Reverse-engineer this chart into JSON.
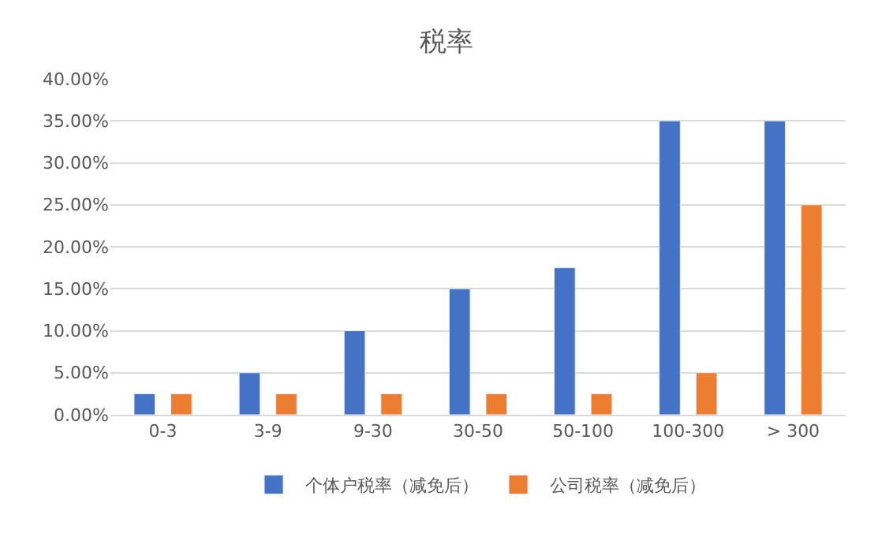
{
  "chart_data": {
    "type": "bar",
    "title": "税率",
    "categories": [
      "0-3",
      "3-9",
      "9-30",
      "30-50",
      "50-100",
      "100-300",
      "> 300"
    ],
    "series": [
      {
        "name": "个体户税率（减免后）",
        "color": "#4472c4",
        "values": [
          2.5,
          5,
          10,
          15,
          17.5,
          35,
          35
        ]
      },
      {
        "name": "公司税率（减免后）",
        "color": "#ed7d31",
        "values": [
          2.5,
          2.5,
          2.5,
          2.5,
          2.5,
          5,
          25
        ]
      }
    ],
    "ylim": [
      0,
      40
    ],
    "yticks": [
      {
        "value": 0,
        "label": "0.00%"
      },
      {
        "value": 5,
        "label": "5.00%"
      },
      {
        "value": 10,
        "label": "10.00%"
      },
      {
        "value": 15,
        "label": "15.00%"
      },
      {
        "value": 20,
        "label": "20.00%"
      },
      {
        "value": 25,
        "label": "25.00%"
      },
      {
        "value": 30,
        "label": "30.00%"
      },
      {
        "value": 35,
        "label": "35.00%"
      },
      {
        "value": 40,
        "label": "40.00%"
      }
    ],
    "grid": "y",
    "legend": "bottom"
  }
}
